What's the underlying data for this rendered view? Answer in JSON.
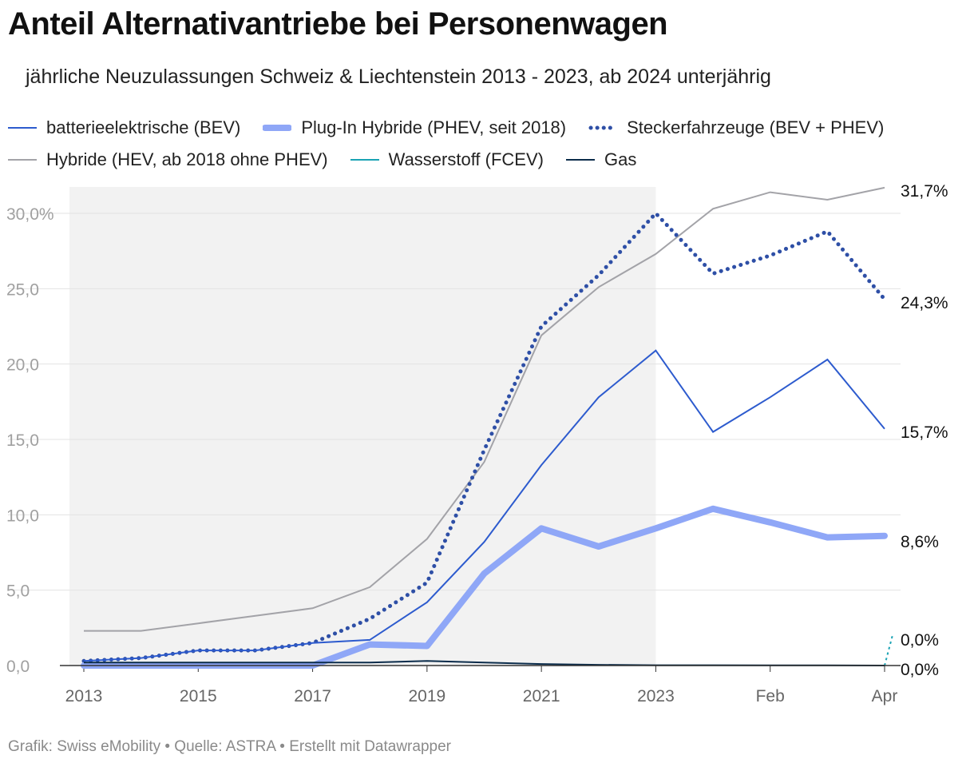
{
  "title": "Anteil Alternativantriebe bei Personenwagen",
  "subtitle": "jährliche Neuzulassungen Schweiz & Liechtenstein 2013 - 2023, ab 2024 unterjährig",
  "footer": "Grafik: Swiss eMobility • Quelle: ASTRA • Erstellt mit Datawrapper",
  "legend": [
    {
      "label": "batterieelektrische (BEV)",
      "color": "#2d5bce",
      "style": "thin"
    },
    {
      "label": "Plug-In Hybride (PHEV, seit 2018)",
      "color": "#8fa7f7",
      "style": "thick"
    },
    {
      "label": "Steckerfahrzeuge (BEV + PHEV)",
      "color": "#2e4fa6",
      "style": "dotted"
    },
    {
      "label": "Hybride (HEV, ab 2018 ohne PHEV)",
      "color": "#a3a3a8",
      "style": "thin"
    },
    {
      "label": "Wasserstoff (FCEV)",
      "color": "#1aa3b4",
      "style": "thin"
    },
    {
      "label": "Gas",
      "color": "#0b2c4b",
      "style": "thin"
    }
  ],
  "chart_data": {
    "type": "line",
    "title": "Anteil Alternativantriebe bei Personenwagen",
    "x": [
      "2013",
      "2014",
      "2015",
      "2016",
      "2017",
      "2018",
      "2019",
      "2020",
      "2021",
      "2022",
      "2023",
      "Jan",
      "Feb",
      "Mär",
      "Apr"
    ],
    "x_tick_labels": [
      "2013",
      "2015",
      "2017",
      "2019",
      "2021",
      "2023",
      "Feb",
      "Apr"
    ],
    "x_tick_positions": [
      "2013",
      "2015",
      "2017",
      "2019",
      "2021",
      "2023",
      "Feb",
      "Apr"
    ],
    "ylim": [
      0,
      30
    ],
    "y_ticks": [
      0,
      5,
      10,
      15,
      20,
      25,
      30
    ],
    "y_tick_labels": [
      "0,0",
      "5,0",
      "10,0",
      "15,0",
      "20,0",
      "25,0",
      "30,0%"
    ],
    "shaded_range": [
      "2013",
      "2023"
    ],
    "grid": "horizontal",
    "legend_position": "top",
    "series": [
      {
        "name": "Hybride (HEV, ab 2018 ohne PHEV)",
        "color": "#a3a3a8",
        "style": "thin",
        "values": [
          2.3,
          2.3,
          2.8,
          3.3,
          3.8,
          5.2,
          8.4,
          13.5,
          21.9,
          25.1,
          27.3,
          30.3,
          31.4,
          30.9,
          31.7
        ],
        "end_label": "31,7%"
      },
      {
        "name": "Steckerfahrzeuge (BEV + PHEV)",
        "color": "#2e4fa6",
        "style": "dotted",
        "values": [
          0.3,
          0.5,
          1.0,
          1.0,
          1.5,
          3.1,
          5.5,
          14.3,
          22.5,
          25.9,
          30.0,
          26.0,
          27.2,
          28.8,
          24.3
        ],
        "end_label": "24,3%"
      },
      {
        "name": "batterieelektrische (BEV)",
        "color": "#2d5bce",
        "style": "thin",
        "values": [
          0.3,
          0.5,
          1.0,
          1.0,
          1.5,
          1.7,
          4.2,
          8.2,
          13.3,
          17.8,
          20.9,
          15.5,
          17.8,
          20.3,
          15.7
        ],
        "end_label": "15,7%"
      },
      {
        "name": "Plug-In Hybride (PHEV, seit 2018)",
        "color": "#8fa7f7",
        "style": "thick",
        "values": [
          0,
          0,
          0,
          0,
          0,
          1.4,
          1.3,
          6.1,
          9.1,
          7.9,
          9.1,
          10.4,
          9.5,
          8.5,
          8.6
        ],
        "end_label": "8,6%"
      },
      {
        "name": "Wasserstoff (FCEV)",
        "color": "#1aa3b4",
        "style": "dashed",
        "values": [
          null,
          null,
          null,
          null,
          null,
          null,
          null,
          null,
          null,
          null,
          null,
          null,
          null,
          null,
          0.0
        ],
        "end_label": "0,0%"
      },
      {
        "name": "Gas",
        "color": "#0b2c4b",
        "style": "thin",
        "values": [
          0.2,
          0.2,
          0.2,
          0.2,
          0.2,
          0.2,
          0.3,
          0.2,
          0.1,
          0.05,
          0.02,
          0.02,
          0.01,
          0.01,
          0.0
        ],
        "end_label": "0,0%"
      }
    ]
  }
}
